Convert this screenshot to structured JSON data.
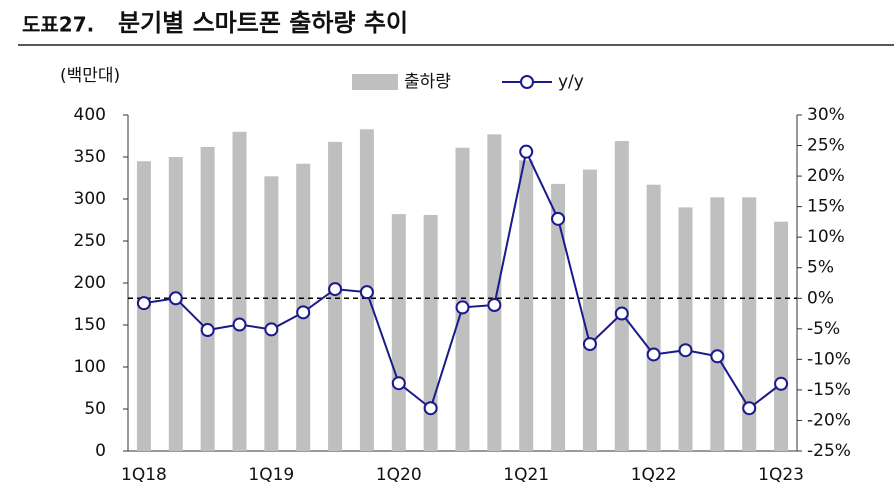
{
  "chart_data": {
    "type": "bar_line",
    "label": "도표27.",
    "title": "분기별 스마트폰 출하량 추이",
    "y_label": "(백만대)",
    "categories": [
      "1Q18",
      null,
      null,
      null,
      "1Q19",
      null,
      null,
      null,
      "1Q20",
      null,
      null,
      null,
      "1Q21",
      null,
      null,
      null,
      "1Q22",
      null,
      null,
      null,
      "1Q23"
    ],
    "series": [
      {
        "name": "출하량",
        "type": "bar",
        "color": "#bfbfbf",
        "values": [
          345,
          350,
          362,
          380,
          327,
          342,
          368,
          383,
          282,
          281,
          361,
          377,
          346,
          318,
          335,
          369,
          317,
          290,
          302,
          302,
          273
        ]
      },
      {
        "name": "y/y",
        "type": "line",
        "axis": "y2",
        "color": "#1a1a8c",
        "values": [
          -0.8,
          0,
          -5.2,
          -4.3,
          -5.1,
          -2.3,
          1.5,
          1.0,
          -13.9,
          -18,
          -1.5,
          -1.1,
          24,
          13,
          -7.5,
          -2.5,
          -9.2,
          -8.5,
          -9.5,
          -18,
          -14
        ]
      }
    ],
    "ylim": [
      0,
      400
    ],
    "yticks": [
      0,
      50,
      100,
      150,
      200,
      250,
      300,
      350,
      400
    ],
    "y2lim": [
      -25,
      30
    ],
    "y2ticks": [
      {
        "value": -25,
        "label": "-25%"
      },
      {
        "value": -20,
        "label": "-20%"
      },
      {
        "value": -15,
        "label": "-15%"
      },
      {
        "value": -10,
        "label": "-10%"
      },
      {
        "value": -5,
        "label": "-5%"
      },
      {
        "value": 0,
        "label": "0%"
      },
      {
        "value": 5,
        "label": "5%"
      },
      {
        "value": 10,
        "label": "10%"
      },
      {
        "value": 15,
        "label": "15%"
      },
      {
        "value": 20,
        "label": "20%"
      },
      {
        "value": 25,
        "label": "25%"
      },
      {
        "value": 30,
        "label": "30%"
      }
    ],
    "reference_line": {
      "axis": "y2",
      "value": 0
    },
    "legend": "top"
  }
}
